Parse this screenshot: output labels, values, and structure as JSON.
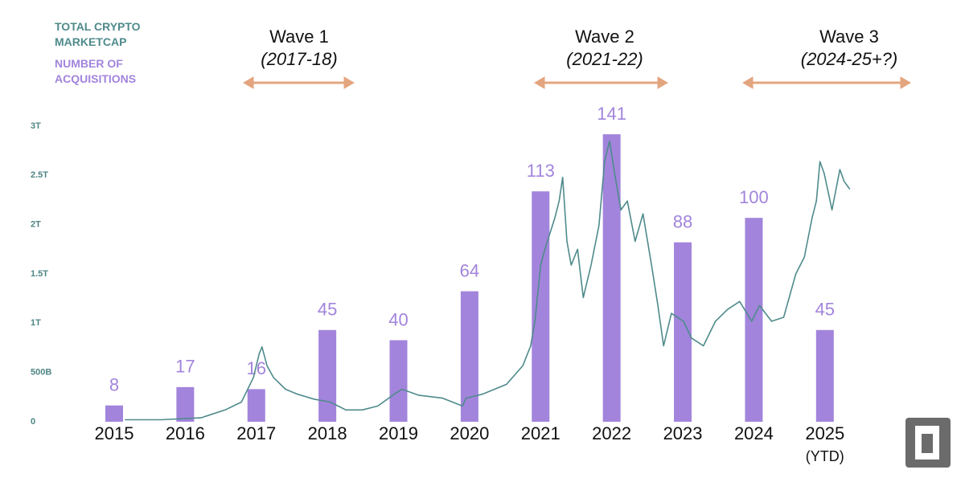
{
  "chart_data": {
    "type": "combo",
    "categories": [
      "2015",
      "2016",
      "2017",
      "2018",
      "2019",
      "2020",
      "2021",
      "2022",
      "2023",
      "2024",
      "2025 (YTD)"
    ],
    "xlim": [
      2014.5,
      2025.5
    ],
    "ylim": [
      0,
      3
    ],
    "yticks": [
      0,
      {
        "value": 0.5,
        "label": "500B"
      },
      {
        "value": 1,
        "label": "1T"
      },
      {
        "value": 1.5,
        "label": "1.5T"
      },
      {
        "value": 2,
        "label": "2T"
      },
      {
        "value": 2.5,
        "label": "2.5T"
      },
      {
        "value": 3,
        "label": "3T"
      }
    ],
    "y2lim": [
      0,
      145
    ],
    "series": [
      {
        "name": "TOTAL CRYPTO MARKETCAP",
        "type": "line",
        "color": "#4f8a8b",
        "x": [
          2015.15,
          2015.66,
          2016.22,
          2016.56,
          2016.79,
          2016.96,
          2017.04,
          2017.08,
          2017.15,
          2017.24,
          2017.41,
          2017.58,
          2017.81,
          2018.04,
          2018.26,
          2018.49,
          2018.71,
          2018.94,
          2019.05,
          2019.28,
          2019.62,
          2019.9,
          2019.95,
          2020.18,
          2020.52,
          2020.75,
          2020.86,
          2020.92,
          2021.0,
          2021.06,
          2021.2,
          2021.26,
          2021.31,
          2021.37,
          2021.43,
          2021.52,
          2021.6,
          2021.71,
          2021.82,
          2021.9,
          2021.97,
          2022.05,
          2022.13,
          2022.22,
          2022.33,
          2022.44,
          2022.56,
          2022.65,
          2022.73,
          2022.84,
          2023.01,
          2023.12,
          2023.29,
          2023.46,
          2023.63,
          2023.8,
          2023.97,
          2024.08,
          2024.25,
          2024.42,
          2024.59,
          2024.71,
          2024.82,
          2024.88,
          2024.93,
          2024.99,
          2025.1,
          2025.21,
          2025.27,
          2025.35
        ],
        "values": [
          0.02,
          0.02,
          0.04,
          0.12,
          0.2,
          0.45,
          0.69,
          0.76,
          0.57,
          0.45,
          0.33,
          0.28,
          0.23,
          0.2,
          0.12,
          0.12,
          0.16,
          0.28,
          0.33,
          0.27,
          0.24,
          0.16,
          0.24,
          0.28,
          0.38,
          0.57,
          0.77,
          1.02,
          1.59,
          1.75,
          2.07,
          2.24,
          2.48,
          1.83,
          1.59,
          1.75,
          1.26,
          1.59,
          1.99,
          2.64,
          2.85,
          2.48,
          2.15,
          2.24,
          1.83,
          2.11,
          1.59,
          1.18,
          0.77,
          1.1,
          1.02,
          0.85,
          0.77,
          1.02,
          1.14,
          1.22,
          1.02,
          1.18,
          1.02,
          1.06,
          1.5,
          1.67,
          2.07,
          2.24,
          2.64,
          2.52,
          2.15,
          2.56,
          2.44,
          2.36
        ]
      },
      {
        "name": "NUMBER OF ACQUISITIONS",
        "type": "bar",
        "axis": "y2",
        "color": "#a284dc",
        "values": [
          8,
          17,
          16,
          45,
          40,
          64,
          113,
          141,
          88,
          100,
          45
        ]
      }
    ],
    "annotations": [
      {
        "title": "Wave 1",
        "period": "(2017-18)",
        "color": "#e3a57f"
      },
      {
        "title": "Wave 2",
        "period": "(2021-22)",
        "color": "#e3a57f"
      },
      {
        "title": "Wave 3",
        "period": "(2024-25+?)",
        "color": "#e3a57f"
      }
    ]
  }
}
